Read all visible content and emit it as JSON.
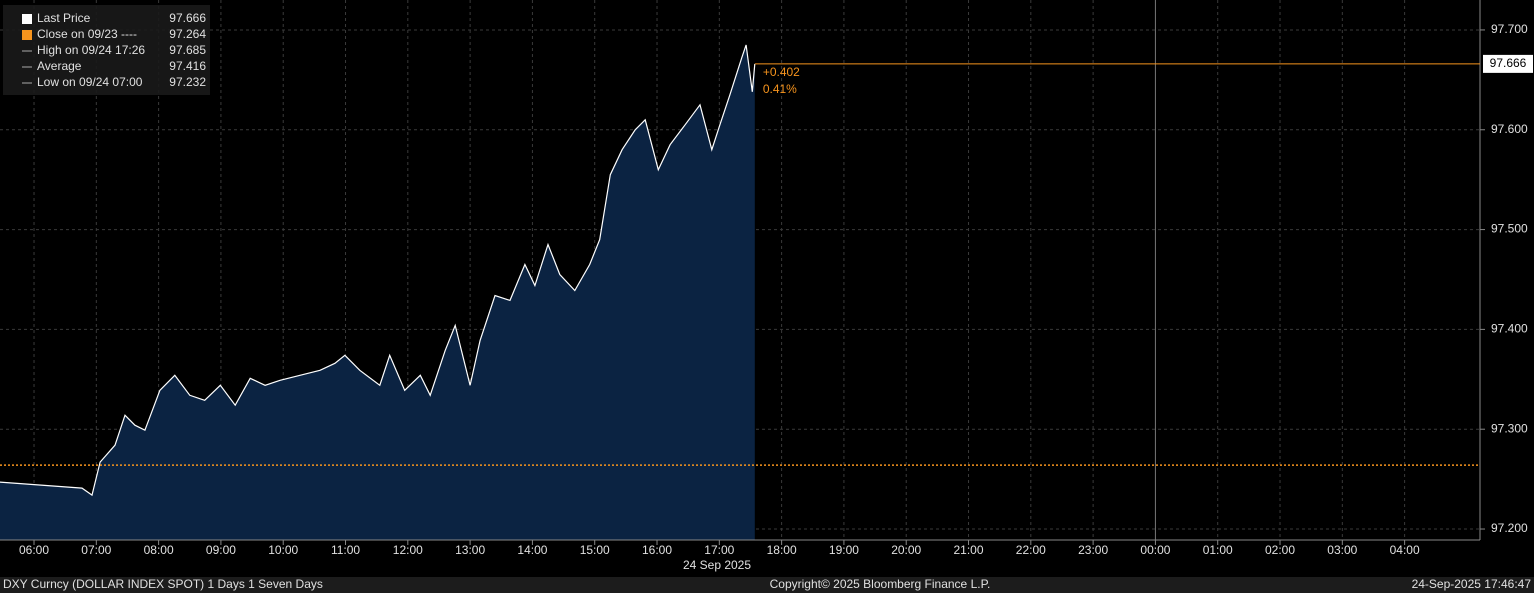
{
  "chart_data": {
    "type": "area",
    "series": [
      {
        "name": "Last Price",
        "color": "#ffffff",
        "area_color": "#0b2342",
        "x": [
          5.45,
          6.77,
          6.93,
          7.06,
          7.3,
          7.46,
          7.62,
          7.78,
          8.02,
          8.26,
          8.5,
          8.74,
          8.99,
          9.23,
          9.47,
          9.71,
          9.95,
          10.27,
          10.59,
          10.83,
          10.99,
          11.23,
          11.55,
          11.71,
          11.95,
          12.2,
          12.36,
          12.6,
          12.76,
          13.0,
          13.16,
          13.4,
          13.64,
          13.88,
          14.04,
          14.25,
          14.44,
          14.68,
          14.92,
          15.08,
          15.25,
          15.44,
          15.65,
          15.81,
          16.02,
          16.21,
          16.45,
          16.69,
          16.88,
          17.01,
          17.17,
          17.36,
          17.43,
          17.53,
          17.57
        ],
        "values": [
          97.247,
          97.241,
          97.234,
          97.267,
          97.284,
          97.314,
          97.304,
          97.299,
          97.339,
          97.354,
          97.334,
          97.329,
          97.344,
          97.324,
          97.351,
          97.344,
          97.349,
          97.354,
          97.359,
          97.366,
          97.374,
          97.359,
          97.344,
          97.374,
          97.339,
          97.354,
          97.334,
          97.379,
          97.404,
          97.344,
          97.389,
          97.434,
          97.429,
          97.465,
          97.444,
          97.485,
          97.455,
          97.439,
          97.465,
          97.49,
          97.555,
          97.58,
          97.6,
          97.61,
          97.56,
          97.585,
          97.605,
          97.625,
          97.58,
          97.605,
          97.635,
          97.672,
          97.685,
          97.638,
          97.666
        ]
      }
    ],
    "legend": [
      {
        "label": "Last Price",
        "value": 97.666,
        "color": "#ffffff"
      },
      {
        "label": "Close on 09/23 ----",
        "value": 97.264,
        "color": "#f7941d"
      },
      {
        "label": "High on 09/24 17:26",
        "value": 97.685,
        "color": "#aaaaaa"
      },
      {
        "label": "Average",
        "value": 97.416,
        "color": "#aaaaaa"
      },
      {
        "label": "Low on 09/24 07:00",
        "value": 97.232,
        "color": "#aaaaaa"
      }
    ],
    "change_label": "+0.402",
    "change_pct_label": "0.41%",
    "xlim": [
      5.454,
      29.21
    ],
    "ylim": [
      97.189,
      97.73
    ],
    "xticks": [
      {
        "value": 6,
        "label": "06:00"
      },
      {
        "value": 7,
        "label": "07:00"
      },
      {
        "value": 8,
        "label": "08:00"
      },
      {
        "value": 9,
        "label": "09:00"
      },
      {
        "value": 10,
        "label": "10:00"
      },
      {
        "value": 11,
        "label": "11:00"
      },
      {
        "value": 12,
        "label": "12:00"
      },
      {
        "value": 13,
        "label": "13:00"
      },
      {
        "value": 14,
        "label": "14:00"
      },
      {
        "value": 15,
        "label": "15:00"
      },
      {
        "value": 16,
        "label": "16:00"
      },
      {
        "value": 17,
        "label": "17:00"
      },
      {
        "value": 18,
        "label": "18:00"
      },
      {
        "value": 19,
        "label": "19:00"
      },
      {
        "value": 20,
        "label": "20:00"
      },
      {
        "value": 21,
        "label": "21:00"
      },
      {
        "value": 22,
        "label": "22:00"
      },
      {
        "value": 23,
        "label": "23:00"
      },
      {
        "value": 24,
        "label": "00:00"
      },
      {
        "value": 25,
        "label": "01:00"
      },
      {
        "value": 26,
        "label": "02:00"
      },
      {
        "value": 27,
        "label": "03:00"
      },
      {
        "value": 28,
        "label": "04:00"
      }
    ],
    "yticks": [
      {
        "value": 97.2,
        "label": "97.200"
      },
      {
        "value": 97.3,
        "label": "97.300"
      },
      {
        "value": 97.4,
        "label": "97.400"
      },
      {
        "value": 97.5,
        "label": "97.500"
      },
      {
        "value": 97.6,
        "label": "97.600"
      },
      {
        "value": 97.7,
        "label": "97.700"
      }
    ],
    "grid": true,
    "date_label": "24 Sep 2025",
    "footer_left": "DXY Curncy (DOLLAR INDEX SPOT) 1 Days 1 Seven Days",
    "footer_center": "Copyright© 2025 Bloomberg Finance L.P.",
    "footer_right": "24-Sep-2025 17:46:47"
  }
}
